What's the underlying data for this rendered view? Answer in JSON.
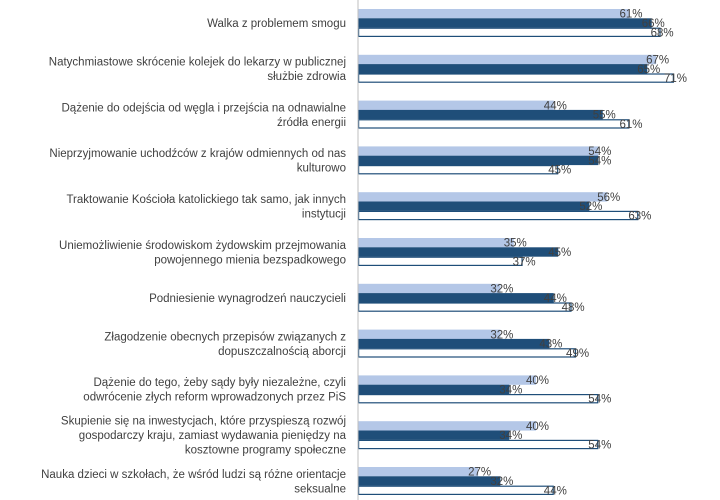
{
  "chart_data": {
    "type": "bar",
    "orientation": "horizontal",
    "categories": [
      [
        "Walka z problemem smogu"
      ],
      [
        "Natychmiastowe skrócenie kolejek do lekarzy w publicznej",
        "służbie zdrowia"
      ],
      [
        "Dążenie do odejścia od węgla i przejścia na odnawialne",
        "źródła energii"
      ],
      [
        "Nieprzyjmowanie uchodźców z krajów odmiennych od nas",
        "kulturowo"
      ],
      [
        "Traktowanie Kościoła katolickiego tak samo, jak innych",
        "instytucji"
      ],
      [
        "Uniemożliwienie środowiskom żydowskim przejmowania",
        "powojennego mienia bezspadkowego"
      ],
      [
        "Podniesienie wynagrodzeń nauczycieli"
      ],
      [
        "Złagodzenie obecnych przepisów związanych z",
        "dopuszczalnością aborcji"
      ],
      [
        "Dążenie do tego, żeby sądy były niezależne, czyli",
        "odwrócenie złych reform wprowadzonych przez PiS"
      ],
      [
        "Skupienie się na inwestycjach, które przyspieszą rozwój",
        "gospodarczy kraju, zamiast wydawania pieniędzy na",
        "kosztowne programy społeczne"
      ],
      [
        "Nauka dzieci w szkołach, że wśród ludzi są różne orientacje",
        "seksualne"
      ]
    ],
    "series": [
      {
        "values": [
          61,
          67,
          44,
          54,
          56,
          35,
          32,
          32,
          40,
          40,
          27
        ],
        "color": "#b4c7e7"
      },
      {
        "values": [
          66,
          65,
          55,
          54,
          52,
          45,
          44,
          43,
          34,
          34,
          32
        ],
        "color": "#1f4e79"
      },
      {
        "values": [
          68,
          71,
          61,
          45,
          63,
          37,
          48,
          49,
          54,
          54,
          44
        ],
        "color": "#ffffff",
        "stroke": "#1f4e79"
      }
    ],
    "value_suffix": "%",
    "xlim": [
      0,
      100
    ],
    "grid": false,
    "legend": "none"
  }
}
